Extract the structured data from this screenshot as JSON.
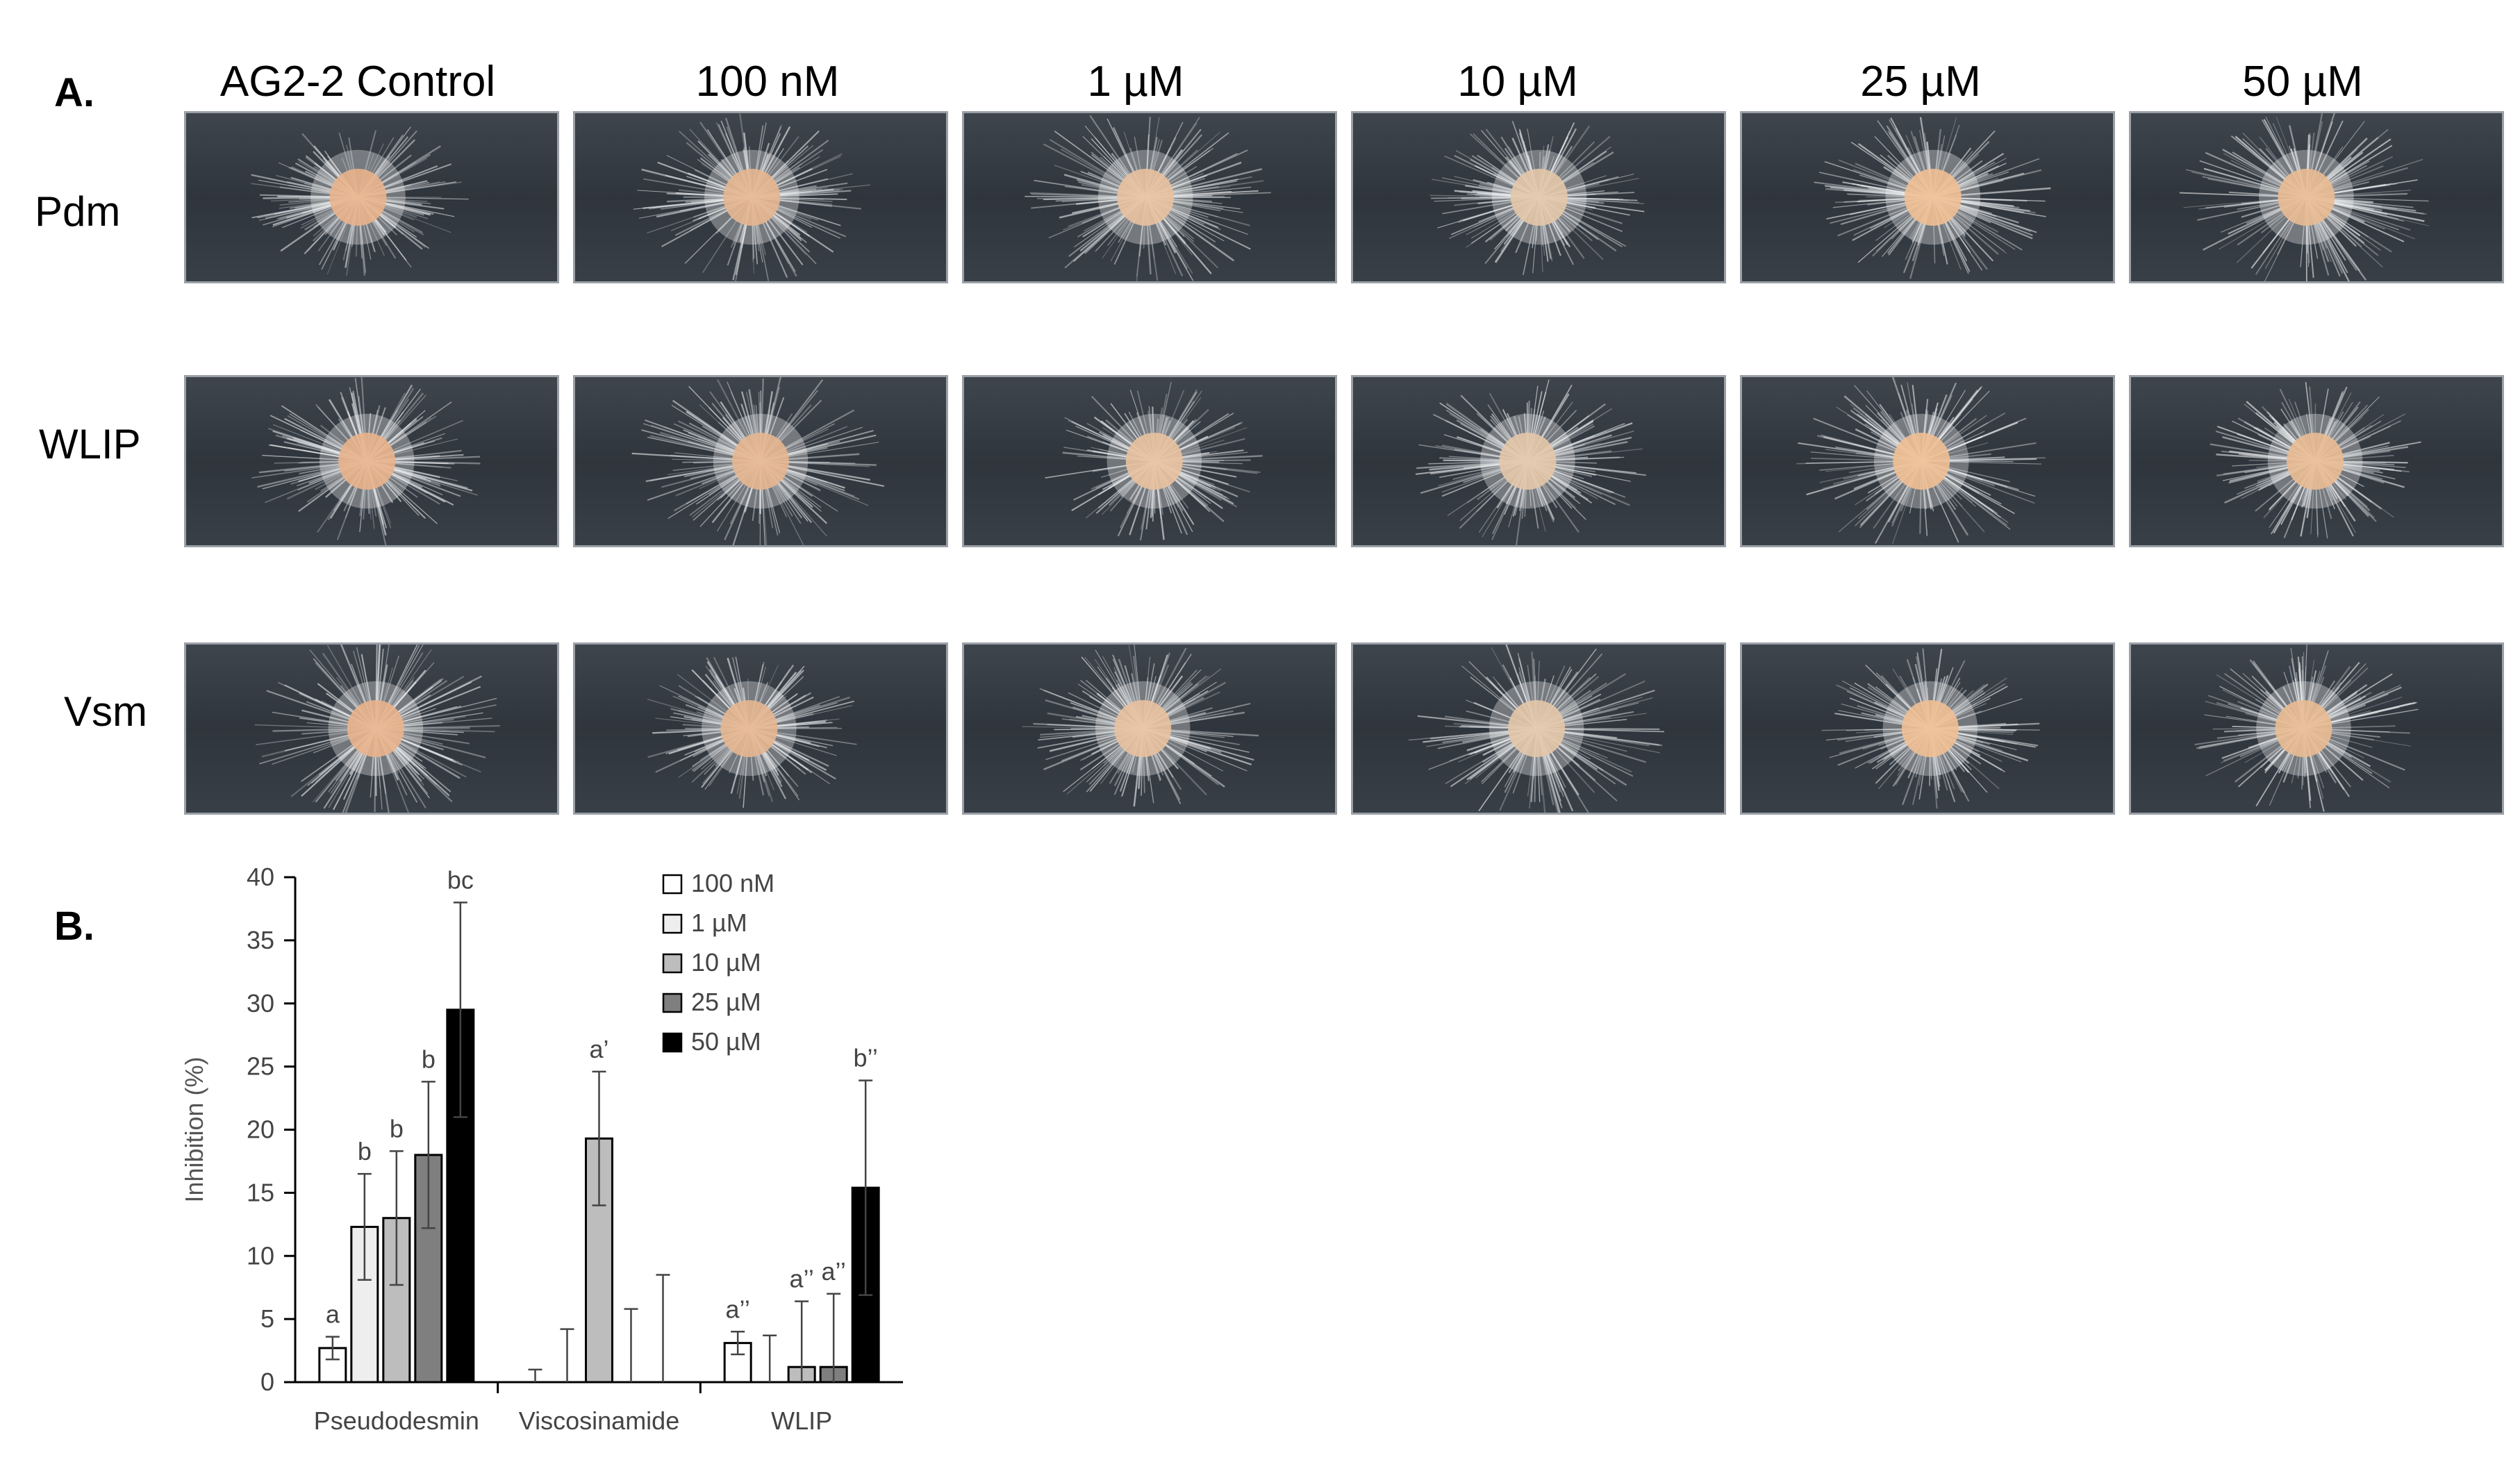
{
  "panel_a": {
    "label": "A.",
    "columns": [
      "AG2-2 Control",
      "100 nM",
      "1 µM",
      "10 µM",
      "25 µM",
      "50 µM"
    ],
    "rows": [
      "Pdm",
      "WLIP",
      "Vsm"
    ]
  },
  "panel_b": {
    "label": "B."
  },
  "chart_data": {
    "type": "bar",
    "categories": [
      "Pseudodesmin",
      "Viscosinamide",
      "WLIP"
    ],
    "ylabel": "Inhibition (%)",
    "xlabel": "",
    "ylim": [
      0,
      40
    ],
    "yticks": [
      0,
      5,
      10,
      15,
      20,
      25,
      30,
      35,
      40
    ],
    "legend_position": "top-right",
    "series": [
      {
        "name": "100 nM",
        "color": "#ffffff",
        "values": [
          2.7,
          0,
          3.1
        ],
        "errors": [
          0.9,
          1.0,
          0.9
        ],
        "labels": [
          "a",
          "",
          "a’’"
        ]
      },
      {
        "name": "1 µM",
        "color": "#eeeeee",
        "values": [
          12.3,
          0,
          0
        ],
        "errors": [
          4.2,
          4.2,
          3.7
        ],
        "labels": [
          "b",
          "",
          ""
        ]
      },
      {
        "name": "10 µM",
        "color": "#bdbdbd",
        "values": [
          13.0,
          19.3,
          1.2
        ],
        "errors": [
          5.3,
          5.3,
          5.2
        ],
        "labels": [
          "b",
          "a’",
          "a’’"
        ]
      },
      {
        "name": "25 µM",
        "color": "#7f7f7f",
        "values": [
          18.0,
          0,
          1.2
        ],
        "errors": [
          5.8,
          5.8,
          5.8
        ],
        "labels": [
          "b",
          "",
          "a’’"
        ]
      },
      {
        "name": "50 µM",
        "color": "#000000",
        "values": [
          29.5,
          0,
          15.4
        ],
        "errors": [
          8.5,
          8.5,
          8.5
        ],
        "labels": [
          "bc",
          "",
          "b’’"
        ]
      }
    ]
  }
}
